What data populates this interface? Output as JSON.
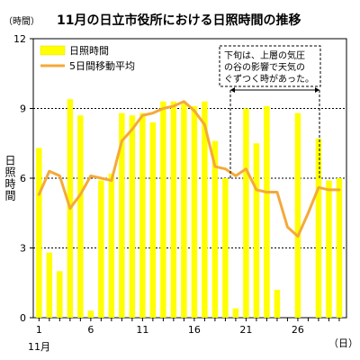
{
  "chart_data": {
    "type": "bar",
    "title": "11月の日立市役所における日照時間の推移",
    "unit_label": "（時間）",
    "ylabel": "日照時間",
    "x_unit_label": "（日）",
    "month_label": "11月",
    "x_tick_labels": [
      "1",
      "6",
      "11",
      "16",
      "21",
      "26"
    ],
    "y_tick_labels": [
      "0",
      "3",
      "6",
      "9",
      "12"
    ],
    "ylim": [
      0,
      12
    ],
    "grid": "dashed horizontal at 3, 6, 9",
    "legend_position": "top-left",
    "annotation": {
      "lines": [
        "下旬は、上層の気圧",
        "の谷の影響で天気の",
        "ぐずつく時があった。"
      ],
      "span_days": [
        20,
        27
      ]
    },
    "x": [
      1,
      2,
      3,
      4,
      5,
      6,
      7,
      8,
      9,
      10,
      11,
      12,
      13,
      14,
      15,
      16,
      17,
      18,
      19,
      20,
      21,
      22,
      23,
      24,
      25,
      26,
      27,
      28,
      29,
      30
    ],
    "series": [
      {
        "name": "日照時間",
        "kind": "bar",
        "color": "#ffff00",
        "values": [
          7.3,
          2.8,
          2.0,
          9.4,
          8.7,
          0.3,
          5.9,
          6.2,
          8.8,
          8.7,
          8.8,
          8.4,
          9.3,
          9.3,
          9.2,
          9.1,
          9.3,
          7.6,
          6.0,
          0.4,
          9.0,
          7.5,
          9.1,
          1.2,
          0.0,
          8.8,
          0.0,
          7.7,
          5.9,
          6.0
        ]
      },
      {
        "name": "5日間移動平均",
        "kind": "line",
        "color": "#f4a93a",
        "values": [
          5.3,
          6.3,
          6.1,
          4.7,
          5.3,
          6.1,
          6.0,
          5.9,
          7.6,
          8.1,
          8.7,
          8.8,
          9.0,
          9.1,
          9.3,
          8.9,
          8.3,
          6.5,
          6.4,
          6.1,
          6.4,
          5.5,
          5.4,
          5.4,
          3.9,
          3.5,
          4.5,
          5.6,
          5.5,
          5.5
        ]
      }
    ]
  }
}
